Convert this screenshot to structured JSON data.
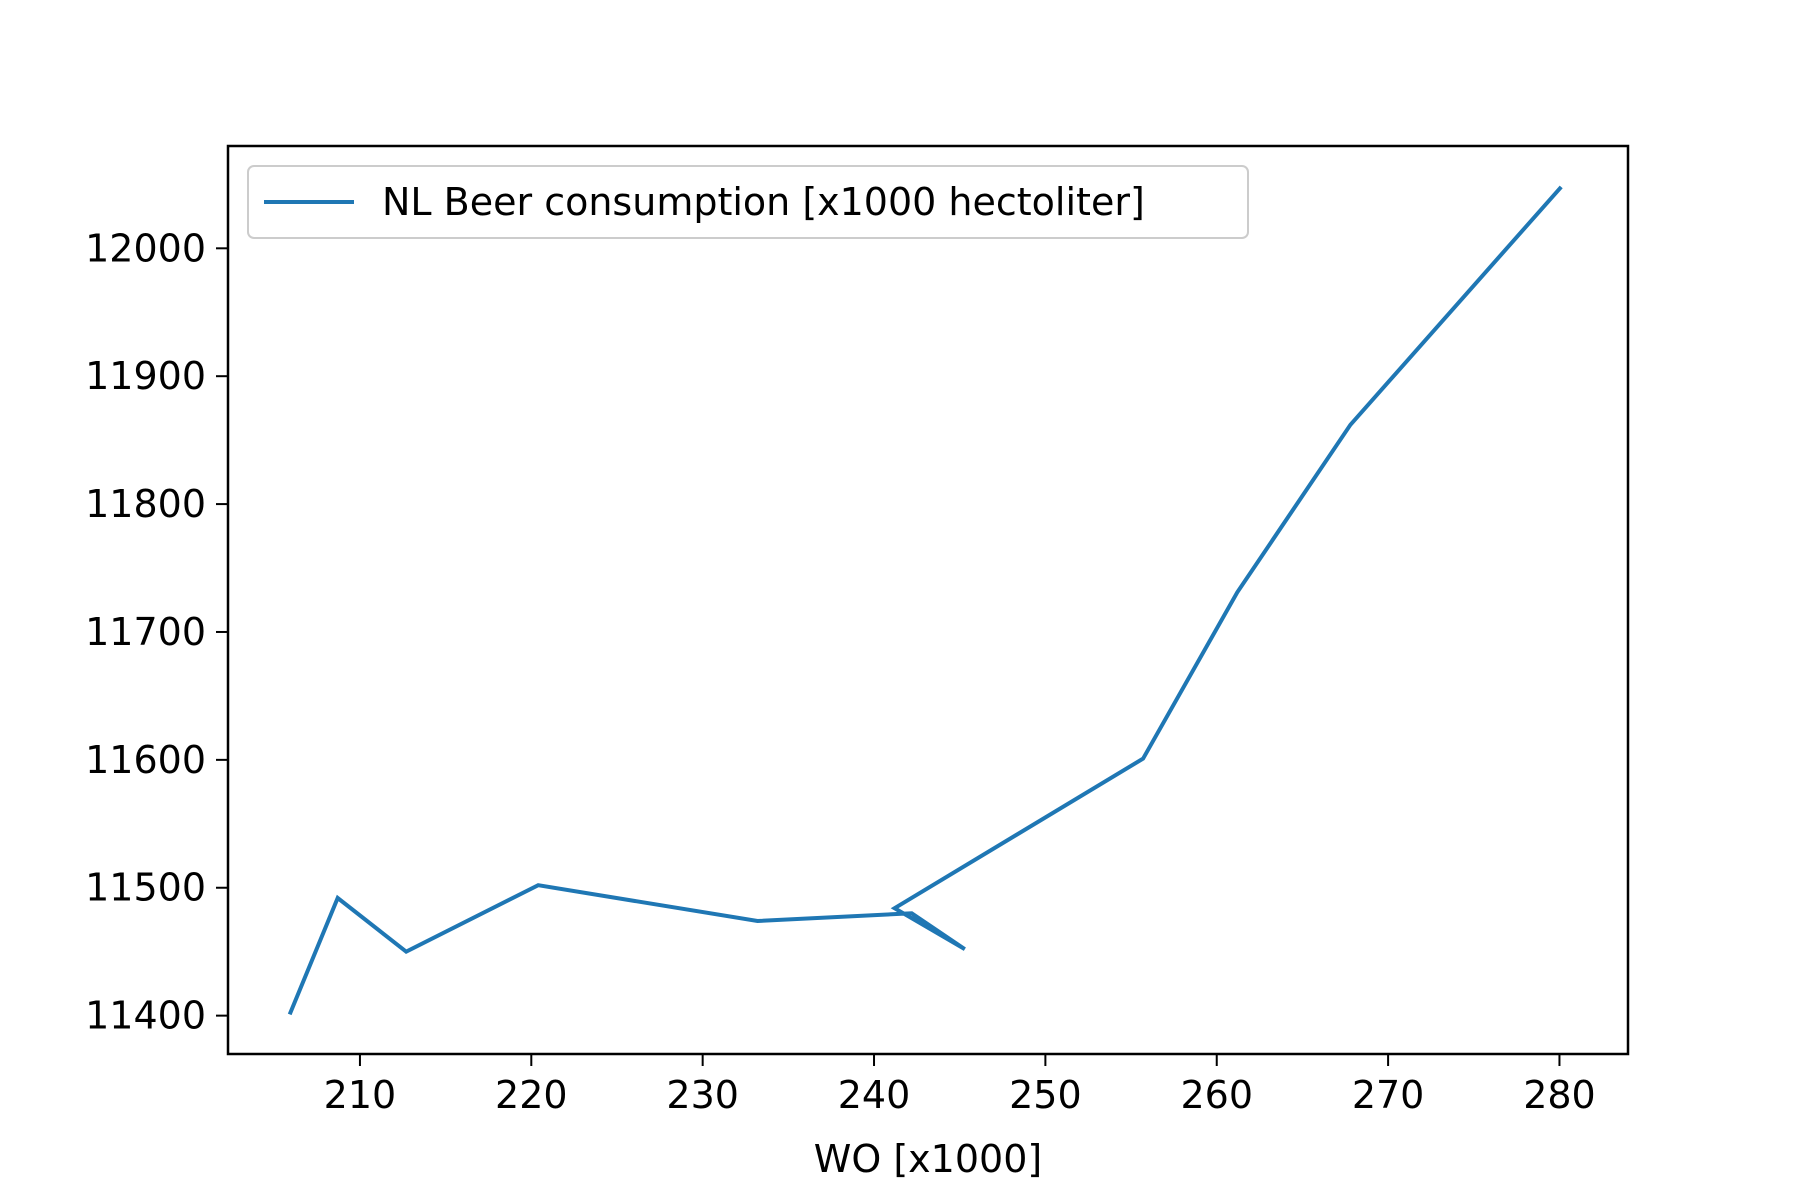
{
  "chart_data": {
    "type": "line",
    "title": "",
    "xlabel": "WO [x1000]",
    "ylabel": "",
    "xlim": [
      202.3,
      284.0
    ],
    "ylim": [
      11370,
      12080
    ],
    "xticks": [
      210,
      220,
      230,
      240,
      250,
      260,
      270,
      280
    ],
    "yticks": [
      11400,
      11500,
      11600,
      11700,
      11800,
      11900,
      12000
    ],
    "xtick_labels": [
      "210",
      "220",
      "230",
      "240",
      "250",
      "260",
      "270",
      "280"
    ],
    "ytick_labels": [
      "11400",
      "11500",
      "11600",
      "11700",
      "11800",
      "11900",
      "12000"
    ],
    "grid": false,
    "legend_position": "upper-left",
    "series": [
      {
        "name": "NL Beer consumption [x1000 hectoliter]",
        "color": "#1f77b4",
        "x": [
          205.9,
          208.7,
          212.7,
          220.4,
          233.2,
          242.2,
          245.3,
          241.2,
          255.7,
          261.2,
          267.8,
          280.1
        ],
        "y": [
          11401,
          11492,
          11450,
          11502,
          11474,
          11480,
          11452,
          11484,
          11601,
          11731,
          11862,
          12048
        ]
      }
    ]
  }
}
